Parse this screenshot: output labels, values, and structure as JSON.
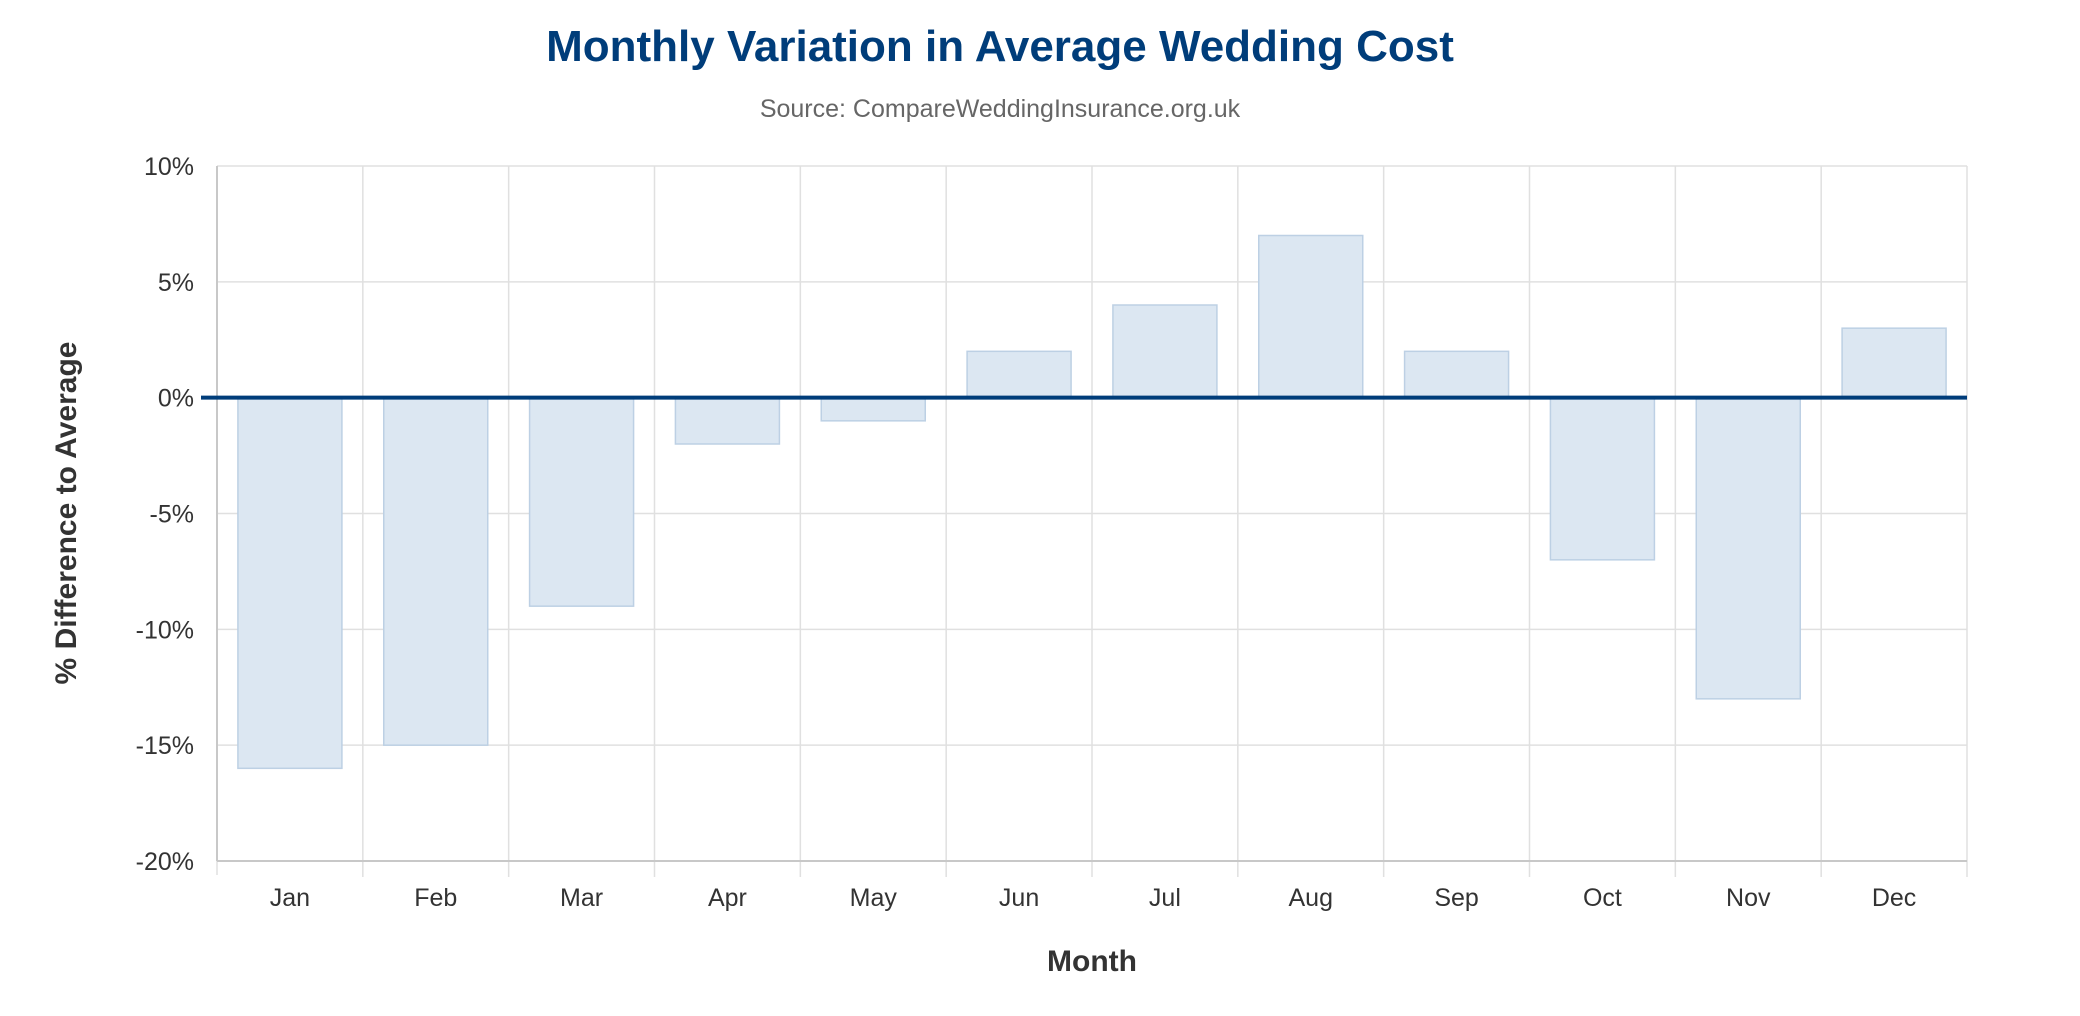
{
  "chart_data": {
    "type": "bar",
    "title": "Monthly Variation in Average Wedding Cost",
    "subtitle": "Source: CompareWeddingInsurance.org.uk",
    "xlabel": "Month",
    "ylabel": "% Difference to Average",
    "categories": [
      "Jan",
      "Feb",
      "Mar",
      "Apr",
      "May",
      "Jun",
      "Jul",
      "Aug",
      "Sep",
      "Oct",
      "Nov",
      "Dec"
    ],
    "series": [
      {
        "name": "% Difference to Average",
        "values": [
          -16,
          -15,
          -9,
          -2,
          -1,
          2,
          4,
          7,
          2,
          -7,
          -13,
          3
        ]
      }
    ],
    "ylim": [
      -20,
      10
    ],
    "yticks": [
      10,
      5,
      0,
      -5,
      -10,
      -15,
      -20
    ],
    "ytick_labels": [
      "10%",
      "5%",
      "0%",
      "-5%",
      "-10%",
      "-15%",
      "-20%"
    ],
    "grid": true,
    "zero_line": true,
    "colors": {
      "title": "#003d7a",
      "bar_fill": "#dce7f2",
      "bar_stroke": "#bdd0e4",
      "zero_line": "#003d7a",
      "grid": "#e0e0e0",
      "axis": "#c8c8c8"
    }
  }
}
